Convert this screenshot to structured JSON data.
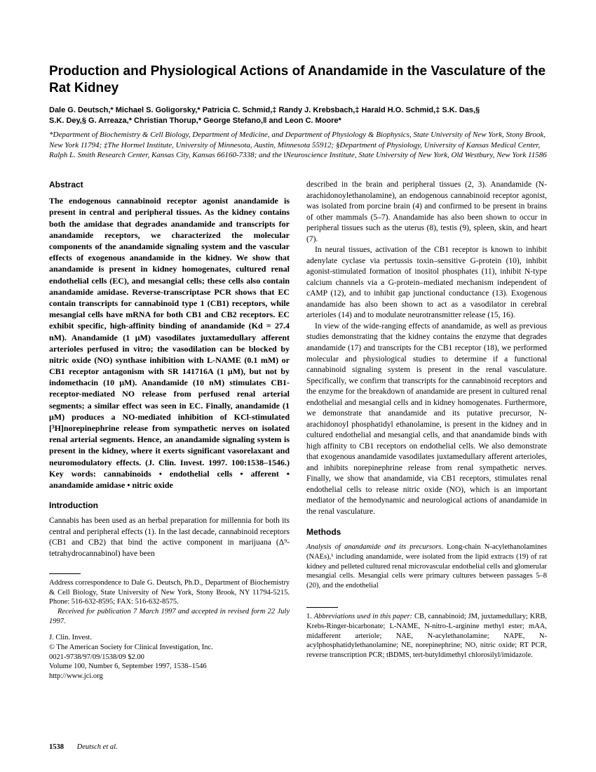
{
  "title": "Production and Physiological Actions of Anandamide in the Vasculature of the Rat Kidney",
  "authors_line1": "Dale G. Deutsch,* Michael S. Goligorsky,* Patricia C. Schmid,‡ Randy J. Krebsbach,‡ Harald H.O. Schmid,‡ S.K. Das,§",
  "authors_line2": "S.K. Dey,§ G. Arreaza,* Christian Thorup,* George Stefano,‖ and Leon C. Moore*",
  "affiliations": "*Department of Biochemistry & Cell Biology, Department of Medicine, and Department of Physiology & Biophysics, State University of New York, Stony Brook, New York 11794; ‡The Hormel Institute, University of Minnesota, Austin, Minnesota 55912; §Department of Physiology, University of Kansas Medical Center, Ralph L. Smith Research Center, Kansas City, Kansas 66160-7338; and the ‖Neuroscience Institute, State University of New York, Old Westbury, New York 11586",
  "abstract_heading": "Abstract",
  "abstract": "The endogenous cannabinoid receptor agonist anandamide is present in central and peripheral tissues. As the kidney contains both the amidase that degrades anandamide and transcripts for anandamide receptors, we characterized the molecular components of the anandamide signaling system and the vascular effects of exogenous anandamide in the kidney. We show that anandamide is present in kidney homogenates, cultured renal endothelial cells (EC), and mesangial cells; these cells also contain anandamide amidase. Reverse-transcriptase PCR shows that EC contain transcripts for cannabinoid type 1 (CB1) receptors, while mesangial cells have mRNA for both CB1 and CB2 receptors. EC exhibit specific, high-affinity binding of anandamide (Kd = 27.4 nM). Anandamide (1 μM) vasodilates juxtamedullary afferent arterioles perfused in vitro; the vasodilation can be blocked by nitric oxide (NO) synthase inhibition with L-NAME (0.1 mM) or CB1 receptor antagonism with SR 141716A (1 μM), but not by indomethacin (10 μM). Anandamide (10 nM) stimulates CB1-receptor-mediated NO release from perfused renal arterial segments; a similar effect was seen in EC. Finally, anandamide (1 μM) produces a NO-mediated inhibition of KCl-stimulated [³H]norepinephrine release from sympathetic nerves on isolated renal arterial segments. Hence, an anandamide signaling system is present in the kidney, where it exerts significant vasorelaxant and neuromodulatory effects. (J. Clin. Invest. 1997. 100:1538–1546.) Key words: cannabinoids • endothelial cells • afferent • anandamide amidase • nitric oxide",
  "intro_heading": "Introduction",
  "intro_p1": "Cannabis has been used as an herbal preparation for millennia for both its central and peripheral effects (1). In the last decade, cannabinoid receptors (CB1 and CB2) that bind the active component in marijuana (Δ⁹-tetrahydrocannabinol) have been",
  "col2_p1": "described in the brain and peripheral tissues (2, 3). Anandamide (N-arachidonoylethanolamine), an endogenous cannabinoid receptor agonist, was isolated from porcine brain (4) and confirmed to be present in brains of other mammals (5–7). Anandamide has also been shown to occur in peripheral tissues such as the uterus (8), testis (9), spleen, skin, and heart (7).",
  "col2_p2": "In neural tissues, activation of the CB1 receptor is known to inhibit adenylate cyclase via pertussis toxin–sensitive G-protein (10), inhibit agonist-stimulated formation of inositol phosphates (11), inhibit N-type calcium channels via a G-protein–mediated mechanism independent of cAMP (12), and to inhibit gap junctional conductance (13). Exogenous anandamide has also been shown to act as a vasodilator in cerebral arterioles (14) and to modulate neurotransmitter release (15, 16).",
  "col2_p3": "In view of the wide-ranging effects of anandamide, as well as previous studies demonstrating that the kidney contains the enzyme that degrades anandamide (17) and transcripts for the CB1 receptor (18), we performed molecular and physiological studies to determine if a functional cannabinoid signaling system is present in the renal vasculature. Specifically, we confirm that transcripts for the cannabinoid receptors and the enzyme for the breakdown of anandamide are present in cultured renal endothelial and mesangial cells and in kidney homogenates. Furthermore, we demonstrate that anandamide and its putative precursor, N-arachidonoyl phosphatidyl ethanolamine, is present in the kidney and in cultured endothelial and mesangial cells, and that anandamide binds with high affinity to CB1 receptors on endothelial cells. We also demonstrate that exogenous anandamide vasodilates juxtamedullary afferent arterioles, and inhibits norepinephrine release from renal sympathetic nerves. Finally, we show that anandamide, via CB1 receptors, stimulates renal endothelial cells to release nitric oxide (NO), which is an important mediator of the hemodynamic and neurological actions of anandamide in the renal vasculature.",
  "methods_heading": "Methods",
  "methods_p1_lead": "Analysis of anandamide and its precursors.",
  "methods_p1_body": " Long-chain N-acylethanolamines (NAEs),¹ including anandamide, were isolated from the lipid extracts (19) of rat kidney and pelleted cultured renal microvascular endothelial cells and glomerular mesangial cells. Mesangial cells were primary cultures between passages 5–8 (20), and the endothelial",
  "corr_text": "Address correspondence to Dale G. Deutsch, Ph.D., Department of Biochemistry & Cell Biology, State University of New York, Stony Brook, NY 11794-5215. Phone: 516-632-8595; FAX: 516-632-8575.",
  "received": "Received for publication 7 March 1997 and accepted in revised form 22 July 1997.",
  "journal_block": {
    "l1": "J. Clin. Invest.",
    "l2": "© The American Society for Clinical Investigation, Inc.",
    "l3": "0021-9738/97/09/1538/09   $2.00",
    "l4": "Volume 100, Number 6, September 1997, 1538–1546",
    "l5": "http://www.jci.org"
  },
  "footnote_lead": "1. Abbreviations used in this paper:",
  "footnote_body": " CB, cannabinoid; JM, juxtamedullary; KRB, Krebs-Ringer-bicarbonate; L-NAME, N-nitro-L-arginine methyl ester; mAA, midafferent arteriole; NAE, N-acylethanolamine; NAPE, N-acylphosphatidylethanolamine; NE, norepinephrine; NO, nitric oxide; RT PCR, reverse transcription PCR; tBDMS, tert-butyldimethyl chlorosilyl/imidazole.",
  "footer": {
    "page": "1538",
    "authors": "Deutsch et al."
  }
}
